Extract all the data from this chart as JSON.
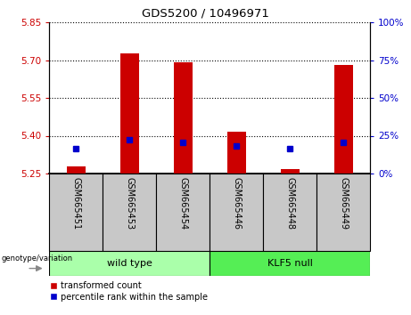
{
  "title": "GDS5200 / 10496971",
  "samples": [
    "GSM665451",
    "GSM665453",
    "GSM665454",
    "GSM665446",
    "GSM665448",
    "GSM665449"
  ],
  "red_bar_tops": [
    5.278,
    5.725,
    5.692,
    5.415,
    5.268,
    5.682
  ],
  "blue_square_y": [
    5.348,
    5.385,
    5.372,
    5.36,
    5.348,
    5.375
  ],
  "bar_base": 5.25,
  "ylim": [
    5.25,
    5.85
  ],
  "y_ticks_left": [
    5.25,
    5.4,
    5.55,
    5.7,
    5.85
  ],
  "y_ticks_right": [
    0,
    25,
    50,
    75,
    100
  ],
  "red_color": "#cc0000",
  "blue_color": "#0000cc",
  "bar_width": 0.35,
  "wt_color": "#aaffaa",
  "klf_color": "#55ee55",
  "label_bg": "#c8c8c8",
  "legend_red": "transformed count",
  "legend_blue": "percentile rank within the sample",
  "geno_label": "genotype/variation",
  "wt_label": "wild type",
  "klf_label": "KLF5 null"
}
